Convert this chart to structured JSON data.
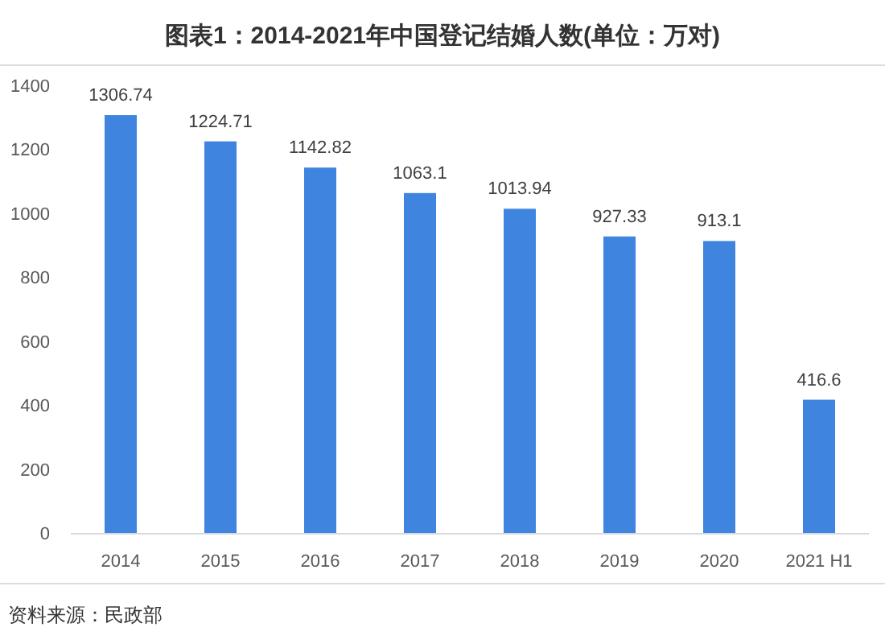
{
  "chart_data": {
    "type": "bar",
    "title": "图表1：2014-2021年中国登记结婚人数(单位：万对)",
    "categories": [
      "2014",
      "2015",
      "2016",
      "2017",
      "2018",
      "2019",
      "2020",
      "2021 H1"
    ],
    "values": [
      1306.74,
      1224.71,
      1142.82,
      1063.1,
      1013.94,
      927.33,
      913.1,
      416.6
    ],
    "color": "#3f85e0",
    "ylim": [
      0,
      1400
    ],
    "yticks": [
      0,
      200,
      400,
      600,
      800,
      1000,
      1200,
      1400
    ],
    "data_labels": true,
    "annotations": [
      "资料来源：民政部"
    ]
  }
}
